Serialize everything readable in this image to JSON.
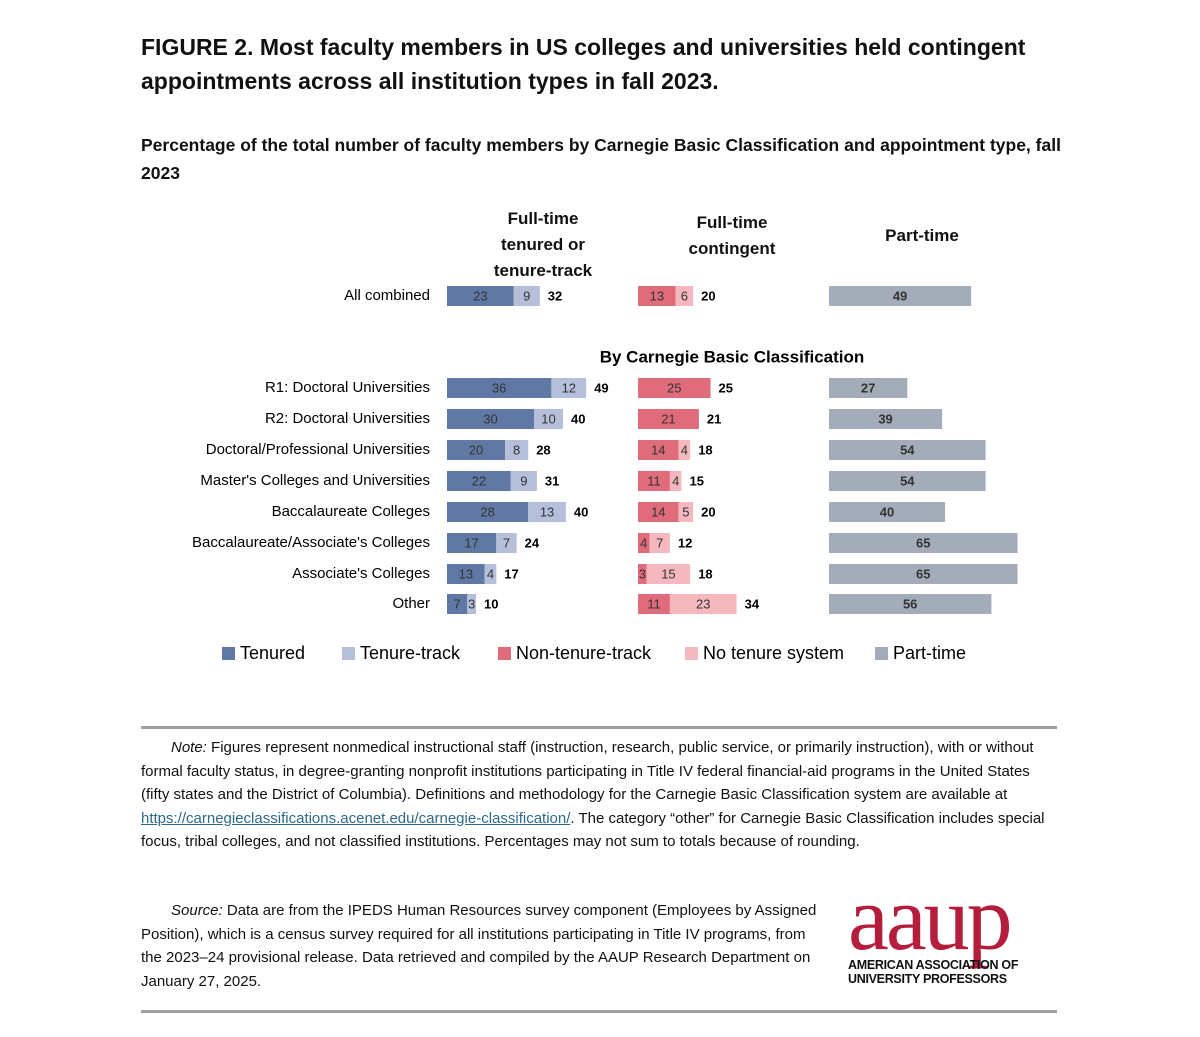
{
  "title": "FIGURE 2. Most faculty members in US colleges and universities held contingent appointments across all institution types in fall 2023.",
  "chart_data": {
    "type": "bar",
    "subtitle": "Percentage of the total number of faculty members by Carnegie Basic Classification and appointment type, fall 2023",
    "group_label": "By Carnegie Basic Classification",
    "categories": [
      "All combined",
      "R1: Doctoral Universities",
      "R2: Doctoral Universities",
      "Doctoral/Professional Universities",
      "Master's Colleges and Universities",
      "Baccalaureate Colleges",
      "Baccalaureate/Associate's Colleges",
      "Associate's Colleges",
      "Other"
    ],
    "panels": [
      {
        "title": "Full-time tenured or tenure-track",
        "series": [
          {
            "name": "Tenured",
            "color": "#6078a4",
            "values": [
              23,
              36,
              30,
              20,
              22,
              28,
              17,
              13,
              7
            ]
          },
          {
            "name": "Tenure-track",
            "color": "#b5bfd9",
            "values": [
              9,
              12,
              10,
              8,
              9,
              13,
              7,
              4,
              3
            ]
          }
        ],
        "totals": [
          32,
          49,
          40,
          28,
          31,
          40,
          24,
          17,
          10
        ]
      },
      {
        "title": "Full-time contingent",
        "series": [
          {
            "name": "Non-tenure-track",
            "color": "#e06b7a",
            "values": [
              13,
              25,
              21,
              14,
              11,
              14,
              4,
              3,
              11
            ]
          },
          {
            "name": "No tenure system",
            "color": "#f5b8be",
            "values": [
              6,
              null,
              null,
              4,
              4,
              5,
              7,
              15,
              23
            ]
          }
        ],
        "totals": [
          20,
          25,
          21,
          18,
          15,
          20,
          12,
          18,
          34
        ]
      },
      {
        "title": "Part-time",
        "series": [
          {
            "name": "Part-time",
            "color": "#a4acb9",
            "values": [
              49,
              27,
              39,
              54,
              54,
              40,
              65,
              65,
              56
            ]
          }
        ]
      }
    ]
  },
  "note": {
    "label": "Note:",
    "text_before": "Figures represent nonmedical instructional staff (instruction, research, public service, or primarily instruction), with or without formal faculty status, in degree-granting nonprofit institutions participating in Title IV federal financial-aid programs in the United States (fifty states and the District of Columbia). Definitions and methodology for the Carnegie Basic Classification system are available at",
    "link": "https://carnegieclassifications.acenet.edu/carnegie-classification/",
    "text_after": ". The category “other” for Carnegie Basic Classification includes special focus, tribal colleges, and not classified institutions. Percentages may not sum to totals because of rounding."
  },
  "source": {
    "label": "Source:",
    "text": "Data are from the IPEDS Human Resources survey component (Employees by Assigned Position), which is a census survey required for all institutions participating in Title IV programs, from the 2023–24 provisional release. Data retrieved and compiled by the AAUP Research Department on January 27, 2025."
  },
  "logo": {
    "mark": "aaup",
    "line1": "AMERICAN ASSOCIATION OF",
    "line2": "UNIVERSITY PROFESSORS"
  }
}
